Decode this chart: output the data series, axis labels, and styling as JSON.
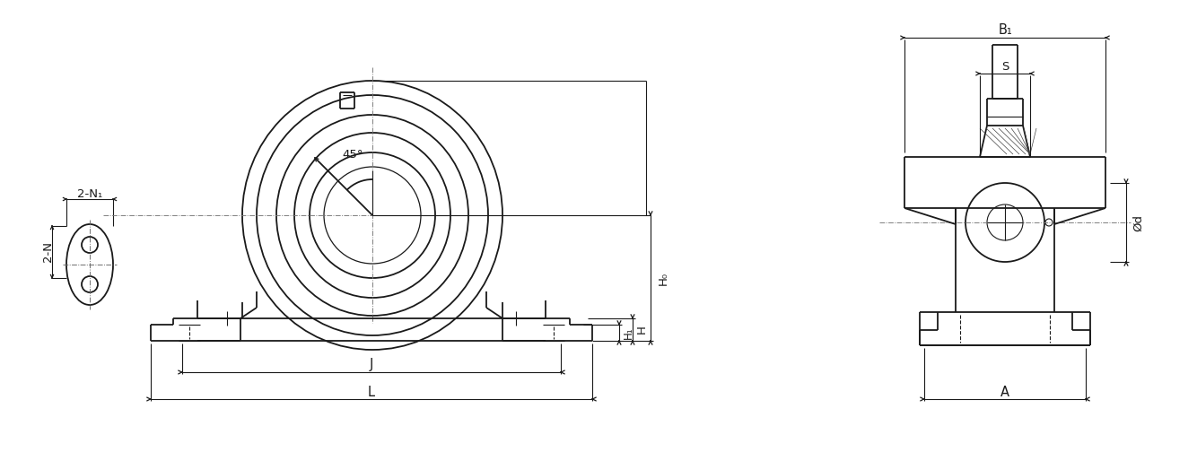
{
  "bg_color": "#ffffff",
  "lc": "#1a1a1a",
  "lw": 1.3,
  "tlw": 0.8,
  "clw": 0.65,
  "fig_w": 13.34,
  "fig_h": 5.04,
  "labels": {
    "two_N": "2-N",
    "two_N1": "2-N₁",
    "angle": "45°",
    "H0": "H₀",
    "H": "H",
    "H1": "H₁",
    "J": "J",
    "L": "L",
    "B1": "B₁",
    "S": "S",
    "phi_d": "Ød",
    "A": "A"
  }
}
